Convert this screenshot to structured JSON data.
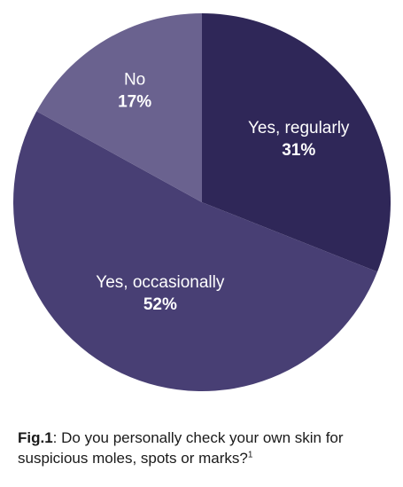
{
  "chart_data": {
    "type": "pie",
    "slices": [
      {
        "label": "Yes, regularly",
        "value": 31,
        "value_text": "31%",
        "color": "#2f2758"
      },
      {
        "label": "Yes, occasionally",
        "value": 52,
        "value_text": "52%",
        "color": "#483f74"
      },
      {
        "label": "No",
        "value": 17,
        "value_text": "17%",
        "color": "#6a628f"
      }
    ]
  },
  "caption": {
    "fig_label": "Fig.1",
    "text": ": Do you personally check your own skin for suspicious moles, spots or marks?",
    "footnote": "1"
  }
}
